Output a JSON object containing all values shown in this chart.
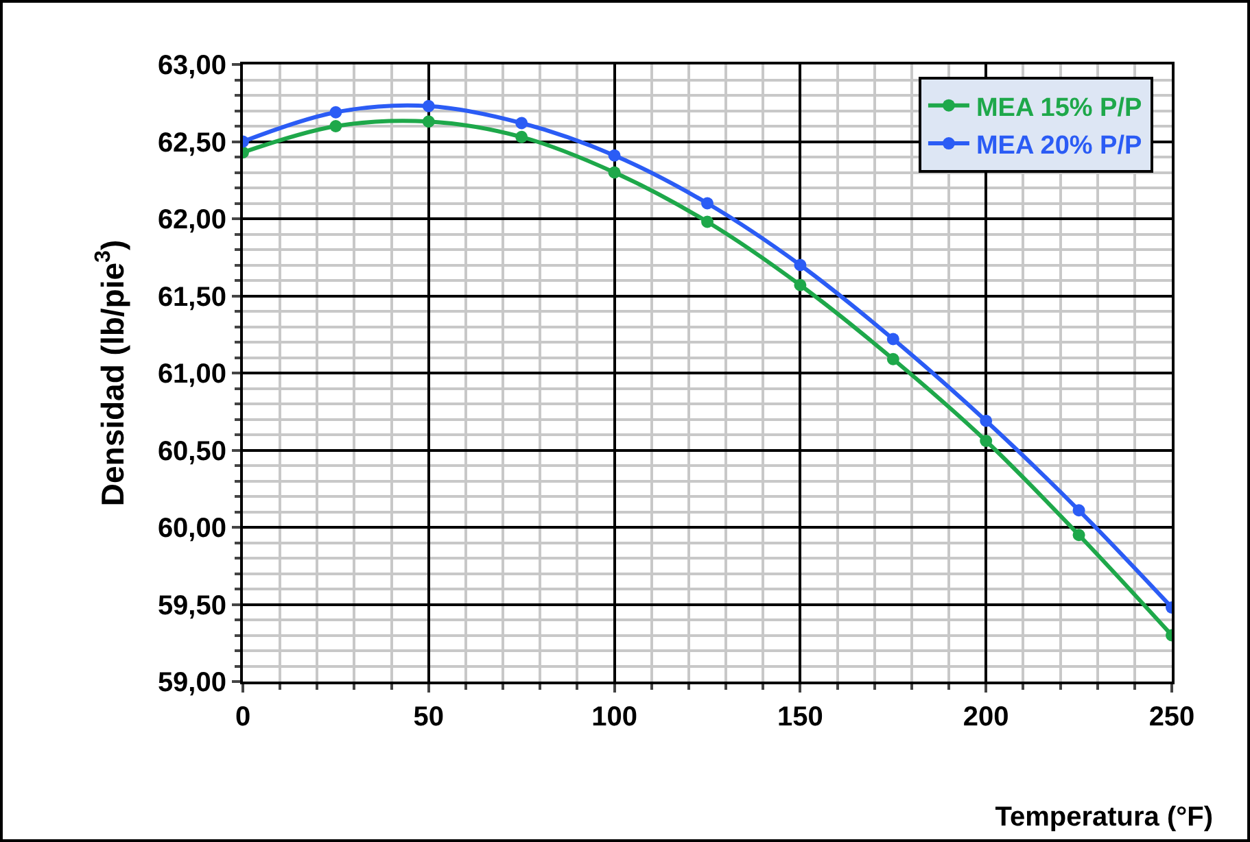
{
  "chart_data": {
    "type": "line",
    "xlabel": "Temperatura (°F)",
    "ylabel": "Densidad (lb/pie$^{3}$)",
    "x": [
      0,
      25,
      50,
      75,
      100,
      125,
      150,
      175,
      200,
      225,
      250
    ],
    "series": [
      {
        "name": "MEA 15% P/P",
        "color": "#1ea84a",
        "values": [
          62.43,
          62.6,
          62.63,
          62.53,
          62.3,
          61.98,
          61.57,
          61.09,
          60.56,
          59.95,
          59.3
        ]
      },
      {
        "name": "MEA 20% P/P",
        "color": "#2b5cf5",
        "values": [
          62.5,
          62.69,
          62.73,
          62.62,
          62.41,
          62.1,
          61.7,
          61.22,
          60.69,
          60.11,
          59.48
        ]
      }
    ],
    "xlim": [
      0,
      250
    ],
    "xticks": [
      0,
      50,
      100,
      150,
      200,
      250
    ],
    "ylim": [
      59,
      63
    ],
    "yticks": [
      {
        "value": 59,
        "label": "59,00"
      },
      {
        "value": 59.5,
        "label": "59,50"
      },
      {
        "value": 60,
        "label": "60,00"
      },
      {
        "value": 60.5,
        "label": "60,50"
      },
      {
        "value": 61,
        "label": "61,00"
      },
      {
        "value": 61.5,
        "label": "61,50"
      },
      {
        "value": 62,
        "label": "62,00"
      },
      {
        "value": 62.5,
        "label": "62,50"
      },
      {
        "value": 63,
        "label": "63,00"
      }
    ],
    "grid": true,
    "legend": "top right",
    "marker": "circle",
    "line_style": "solid"
  }
}
